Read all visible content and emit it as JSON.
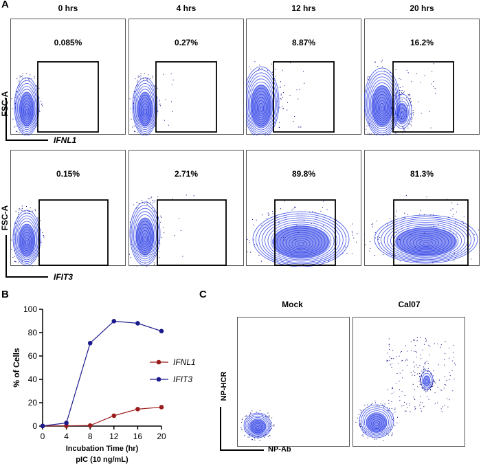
{
  "panel_a": {
    "label": "A",
    "time_titles": [
      "0 hrs",
      "4 hrs",
      "12 hrs",
      "20 hrs"
    ],
    "rows": [
      {
        "y_axis": "FSC-A",
        "x_axis": "IFNL1",
        "percentages": [
          "0.085%",
          "0.27%",
          "8.87%",
          "16.2%"
        ]
      },
      {
        "y_axis": "FSC-A",
        "x_axis": "IFIT3",
        "percentages": [
          "0.15%",
          "2.71%",
          "89.8%",
          "81.3%"
        ]
      }
    ],
    "plot_color": "#2b3ee6"
  },
  "panel_b": {
    "label": "B"
  },
  "panel_c": {
    "label": "C",
    "titles": [
      "Mock",
      "Cal07"
    ],
    "y_axis": "NP-HCR",
    "x_axis": "NP-Ab"
  },
  "chart_data": {
    "type": "line",
    "x": [
      0,
      4,
      8,
      12,
      16,
      20
    ],
    "xticks": [
      "0",
      "4",
      "8",
      "12",
      "16",
      "20"
    ],
    "yticks": [
      "0",
      "20",
      "40",
      "60",
      "80",
      "100"
    ],
    "xlim": [
      0,
      20
    ],
    "ylim": [
      0,
      100
    ],
    "xlabel": "Incubation Time (hr)",
    "xlabel2": "pIC (10 ng/mL)",
    "ylabel": "% of Cells",
    "legend_position": "right",
    "series": [
      {
        "name": "IFNL1",
        "color": "#9b1b1b",
        "values": [
          0.085,
          0.27,
          0.5,
          8.9,
          14.5,
          16.2
        ]
      },
      {
        "name": "IFIT3",
        "color": "#1a1a8c",
        "values": [
          0.15,
          2.7,
          71,
          89.8,
          88,
          81.3
        ]
      }
    ]
  }
}
